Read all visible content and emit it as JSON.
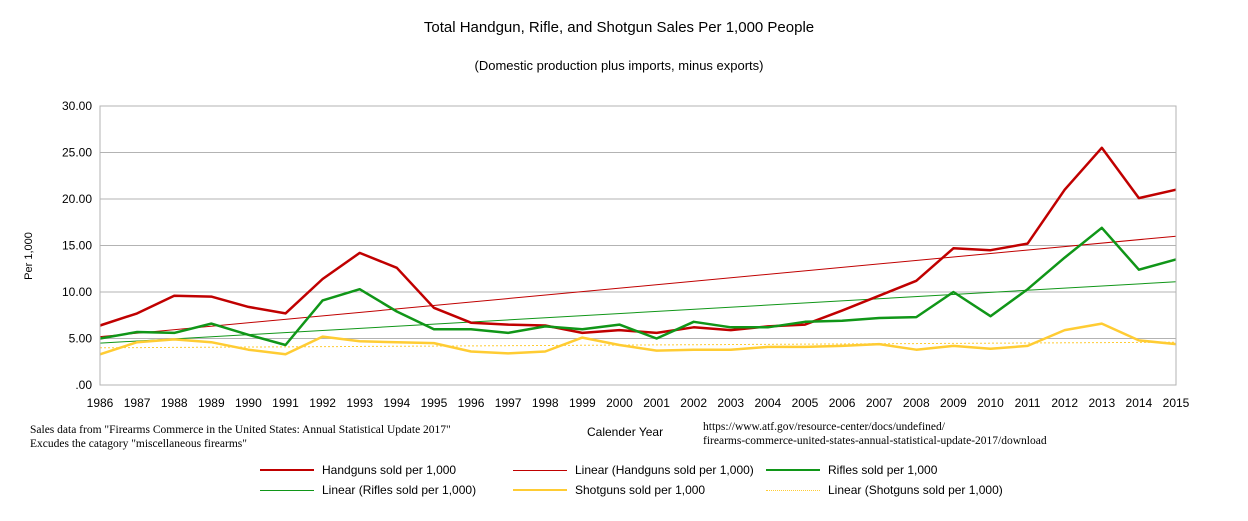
{
  "chart_data": {
    "type": "line",
    "title": "Total Handgun, Rifle, and Shotgun Sales Per 1,000 People",
    "subtitle": "(Domestic production plus imports, minus exports)",
    "xlabel": "Calender Year",
    "ylabel": "Per 1,000",
    "ylim": [
      0,
      30
    ],
    "yticks": [
      ".00",
      "5.00",
      "10.00",
      "15.00",
      "20.00",
      "25.00",
      "30.00"
    ],
    "grid": "horizontal",
    "legend_position": "bottom",
    "categories": [
      "1986",
      "1987",
      "1988",
      "1989",
      "1990",
      "1991",
      "1992",
      "1993",
      "1994",
      "1995",
      "1996",
      "1997",
      "1998",
      "1999",
      "2000",
      "2001",
      "2002",
      "2003",
      "2004",
      "2005",
      "2006",
      "2007",
      "2008",
      "2009",
      "2010",
      "2011",
      "2012",
      "2013",
      "2014",
      "2015"
    ],
    "series": [
      {
        "name": "Handguns sold per 1,000",
        "color": "#c00000",
        "width": 2.5,
        "values": [
          6.4,
          7.7,
          9.6,
          9.5,
          8.4,
          7.7,
          11.4,
          14.2,
          12.6,
          8.3,
          6.7,
          6.5,
          6.4,
          5.6,
          5.9,
          5.6,
          6.2,
          5.9,
          6.3,
          6.5,
          8.0,
          9.6,
          11.2,
          14.7,
          14.5,
          15.2,
          21.0,
          25.5,
          20.1,
          21.0
        ]
      },
      {
        "name": "Rifles sold per 1,000",
        "color": "#109618",
        "width": 2.5,
        "values": [
          5.0,
          5.7,
          5.6,
          6.6,
          5.4,
          4.3,
          9.1,
          10.3,
          7.9,
          6.0,
          6.0,
          5.6,
          6.3,
          6.0,
          6.5,
          5.0,
          6.8,
          6.2,
          6.2,
          6.8,
          6.9,
          7.2,
          7.3,
          10.0,
          7.4,
          10.3,
          13.7,
          16.9,
          12.4,
          13.5
        ]
      },
      {
        "name": "Shotguns sold per 1,000",
        "color": "#ffcc33",
        "width": 2.5,
        "values": [
          3.3,
          4.6,
          4.9,
          4.6,
          3.8,
          3.3,
          5.2,
          4.7,
          4.6,
          4.5,
          3.6,
          3.4,
          3.6,
          5.1,
          4.3,
          3.7,
          3.8,
          3.8,
          4.1,
          4.1,
          4.2,
          4.4,
          3.8,
          4.2,
          3.9,
          4.2,
          5.9,
          6.6,
          4.8,
          4.4
        ]
      }
    ],
    "trendlines": [
      {
        "name": "Linear (Handguns sold per 1,000)",
        "color": "#c00000",
        "width": 1,
        "dash": "",
        "start": 5.2,
        "end": 16.0
      },
      {
        "name": "Linear (Rifles sold per 1,000)",
        "color": "#109618",
        "width": 1,
        "dash": "",
        "start": 4.5,
        "end": 11.1
      },
      {
        "name": "Linear (Shotguns sold per 1,000)",
        "color": "#ffcc33",
        "width": 1,
        "dash": "2,2",
        "start": 4.0,
        "end": 4.6
      }
    ]
  },
  "notes": {
    "source_line1": "Sales data from \"Firearms Commerce in the United States: Annual Statistical Update 2017\"",
    "source_line2": "Excudes the catagory \"miscellaneous firearms\"",
    "url_line1": "https://www.atf.gov/resource-center/docs/undefined/",
    "url_line2": "firearms-commerce-united-states-annual-statistical-update-2017/download"
  }
}
